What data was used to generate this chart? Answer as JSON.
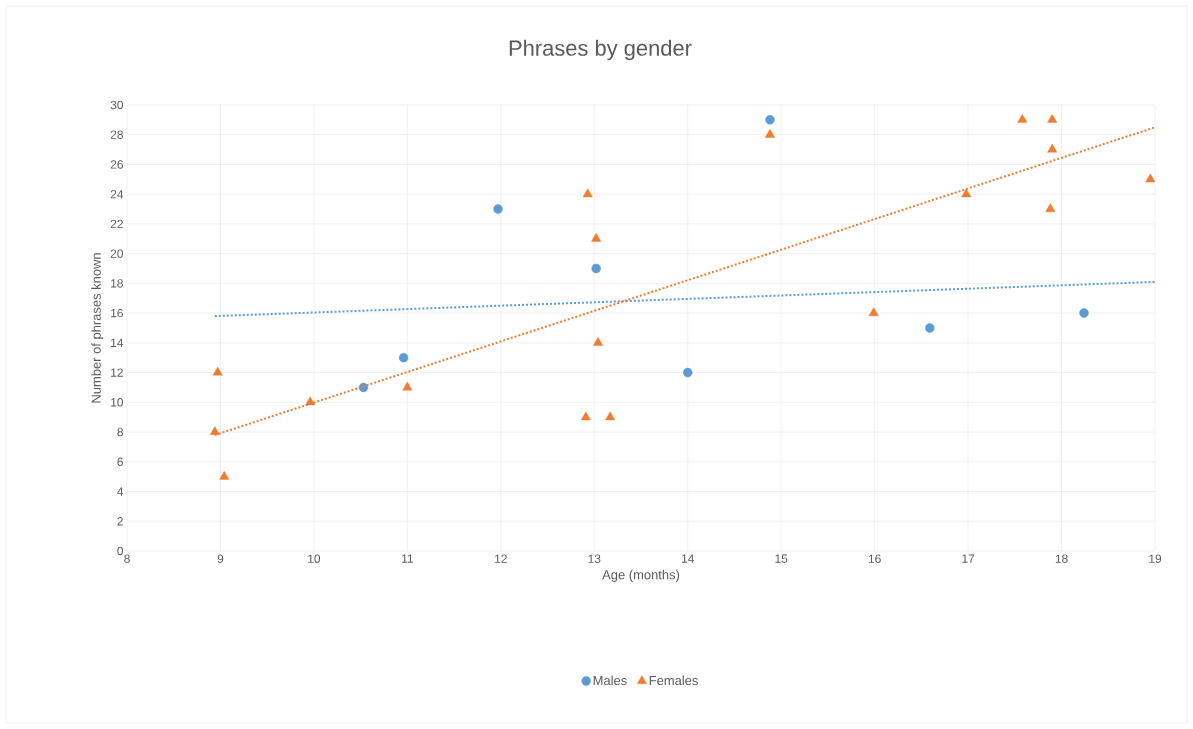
{
  "chart_data": {
    "type": "scatter",
    "title": "Phrases by gender",
    "xlabel": "Age  (months)",
    "ylabel": "Number  of phrases known",
    "xlim": [
      8,
      19
    ],
    "ylim": [
      0,
      30
    ],
    "xticks": [
      8,
      9,
      10,
      11,
      12,
      13,
      14,
      15,
      16,
      17,
      18,
      19
    ],
    "yticks": [
      0,
      2,
      4,
      6,
      8,
      10,
      12,
      14,
      16,
      18,
      20,
      22,
      24,
      26,
      28,
      30
    ],
    "grid": true,
    "legend": "bottom",
    "series": [
      {
        "name": "Males",
        "color": "#5b9bd5",
        "marker": "circle",
        "x": [
          10.53,
          10.96,
          11.97,
          13.02,
          14.0,
          14.88,
          16.59,
          18.24
        ],
        "values": [
          11,
          13,
          23,
          19,
          12,
          29,
          15,
          16
        ]
      },
      {
        "name": "Females",
        "color": "#ed7d31",
        "marker": "triangle",
        "x": [
          8.94,
          8.97,
          9.04,
          9.96,
          11.0,
          12.93,
          13.02,
          13.04,
          12.91,
          13.17,
          14.88,
          15.99,
          16.98,
          17.58,
          17.9,
          17.9,
          17.88,
          18.95
        ],
        "values": [
          8,
          12,
          5,
          10,
          11,
          24,
          21,
          14,
          9,
          9,
          28,
          16,
          24,
          29,
          29,
          27,
          23,
          25
        ]
      },
      {
        "type": "line",
        "color": "#5b9bd5",
        "marker": "none",
        "line_style": "dotted",
        "x": [
          8.94,
          19
        ],
        "values": [
          15.8,
          18.1
        ]
      },
      {
        "type": "line",
        "color": "#ed7d31",
        "marker": "none",
        "line_style": "dotted",
        "x": [
          8.94,
          19
        ],
        "values": [
          7.8,
          28.5
        ]
      }
    ]
  }
}
